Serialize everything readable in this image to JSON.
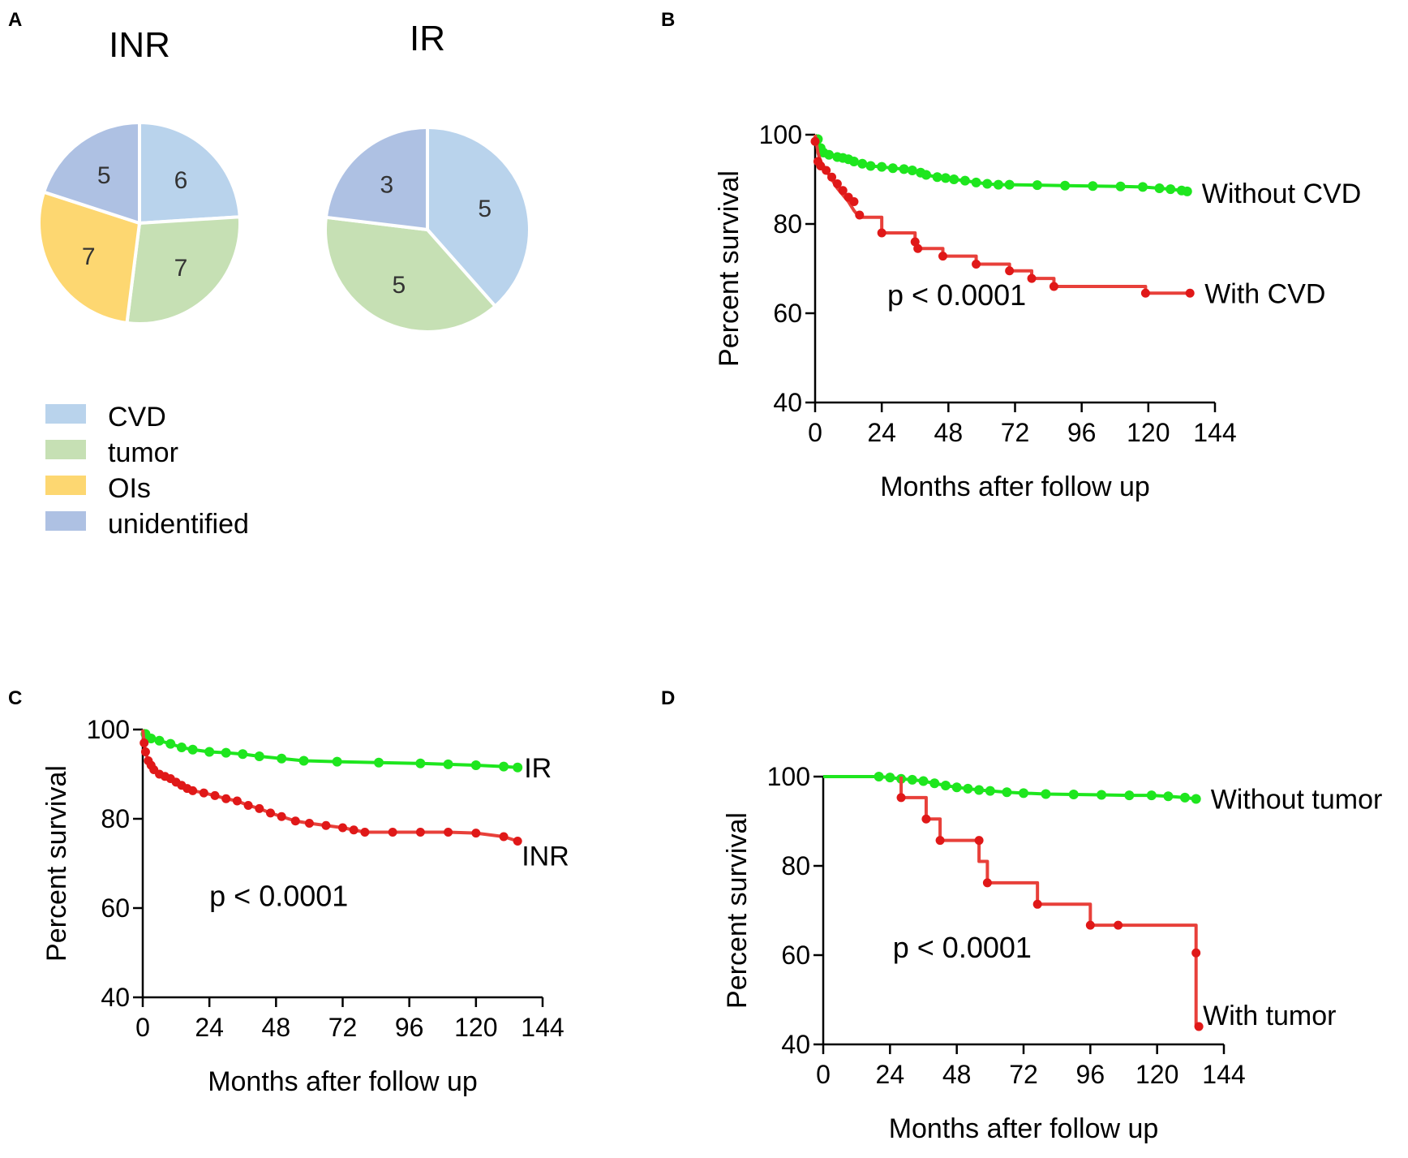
{
  "panels": {
    "a": "A",
    "b": "B",
    "c": "C",
    "d": "D"
  },
  "colors": {
    "CVD": "#b9d3ec",
    "tumor": "#c6e0b4",
    "OIs": "#fdd771",
    "unidentified": "#aec1e3",
    "green_curve": "#1ee61e",
    "red_curve": "#e8403a",
    "red_points": "#e01818"
  },
  "chart_data": [
    {
      "type": "pie",
      "panel": "A",
      "title": "INR",
      "slices": [
        {
          "category": "CVD",
          "value": 6
        },
        {
          "category": "tumor",
          "value": 7
        },
        {
          "category": "OIs",
          "value": 7
        },
        {
          "category": "unidentified",
          "value": 5
        }
      ]
    },
    {
      "type": "pie",
      "panel": "A",
      "title": "IR",
      "slices": [
        {
          "category": "CVD",
          "value": 5
        },
        {
          "category": "tumor",
          "value": 5
        },
        {
          "category": "unidentified",
          "value": 3
        }
      ]
    },
    {
      "type": "legend",
      "panel": "A",
      "entries": [
        {
          "category": "CVD",
          "label": "CVD"
        },
        {
          "category": "tumor",
          "label": "tumor"
        },
        {
          "category": "OIs",
          "label": "OIs"
        },
        {
          "category": "unidentified",
          "label": "unidentified"
        }
      ]
    },
    {
      "type": "line",
      "panel": "B",
      "xlabel": "Months after follow up",
      "ylabel": "Percent survival",
      "xlim": [
        0,
        144
      ],
      "ylim": [
        40,
        100
      ],
      "xticks": [
        "0",
        "24",
        "48",
        "72",
        "96",
        "120",
        "144"
      ],
      "yticks": [
        "40",
        "60",
        "80",
        "100"
      ],
      "annotation": {
        "text": "p < 0.0001",
        "x": 26,
        "y": 61.8
      },
      "series": [
        {
          "name": "Without CVD",
          "color_key": "green_curve",
          "points": [
            [
              0,
              100
            ],
            [
              1,
              99
            ],
            [
              2,
              97
            ],
            [
              3,
              96
            ],
            [
              5,
              95.5
            ],
            [
              8,
              95
            ],
            [
              10,
              94.8
            ],
            [
              12,
              94.5
            ],
            [
              14,
              94
            ],
            [
              17,
              93.5
            ],
            [
              20,
              93
            ],
            [
              24,
              92.8
            ],
            [
              28,
              92.5
            ],
            [
              32,
              92.3
            ],
            [
              35,
              92
            ],
            [
              38,
              91.5
            ],
            [
              40,
              91
            ],
            [
              44,
              90.5
            ],
            [
              47,
              90.3
            ],
            [
              50,
              90
            ],
            [
              54,
              89.7
            ],
            [
              58,
              89.3
            ],
            [
              62,
              89
            ],
            [
              66,
              88.8
            ],
            [
              70,
              88.8
            ],
            [
              80,
              88.7
            ],
            [
              90,
              88.6
            ],
            [
              100,
              88.5
            ],
            [
              110,
              88.4
            ],
            [
              118,
              88.3
            ],
            [
              124,
              88
            ],
            [
              128,
              87.8
            ],
            [
              132,
              87.5
            ],
            [
              134,
              87.3
            ]
          ],
          "label": "Without CVD"
        },
        {
          "name": "With CVD",
          "color_key": "red_curve",
          "points": [
            [
              0,
              100
            ],
            [
              0.5,
              98
            ],
            [
              1,
              96
            ],
            [
              2,
              94
            ],
            [
              4,
              92
            ],
            [
              6,
              90
            ],
            [
              8,
              88
            ],
            [
              10,
              86.5
            ],
            [
              12,
              85
            ],
            [
              14,
              83
            ],
            [
              16,
              81.5
            ],
            [
              24,
              81.5
            ],
            [
              24,
              78
            ],
            [
              36,
              78
            ],
            [
              36,
              75.5
            ],
            [
              38,
              74.5
            ],
            [
              46,
              74.5
            ],
            [
              46,
              72.8
            ],
            [
              58,
              72.8
            ],
            [
              58,
              71
            ],
            [
              70,
              71
            ],
            [
              70,
              69.5
            ],
            [
              78,
              69.5
            ],
            [
              78,
              67.8
            ],
            [
              86,
              67.8
            ],
            [
              86,
              66
            ],
            [
              119,
              66
            ],
            [
              119,
              64.5
            ],
            [
              135,
              64.5
            ]
          ],
          "markers": [
            [
              0,
              98.5
            ],
            [
              1,
              94
            ],
            [
              2,
              93
            ],
            [
              4,
              92
            ],
            [
              6,
              90.5
            ],
            [
              8,
              89
            ],
            [
              10,
              87.5
            ],
            [
              12,
              86
            ],
            [
              14,
              85
            ],
            [
              16,
              82
            ],
            [
              24,
              78
            ],
            [
              36,
              76
            ],
            [
              37,
              74.5
            ],
            [
              46,
              72.8
            ],
            [
              58,
              71
            ],
            [
              70,
              69.5
            ],
            [
              78,
              67.8
            ],
            [
              86,
              66
            ],
            [
              119,
              64.5
            ],
            [
              135,
              64.5
            ]
          ],
          "label": "With CVD"
        }
      ]
    },
    {
      "type": "line",
      "panel": "C",
      "xlabel": "Months after follow up",
      "ylabel": "Percent survival",
      "xlim": [
        0,
        144
      ],
      "ylim": [
        40,
        100
      ],
      "xticks": [
        "0",
        "24",
        "48",
        "72",
        "96",
        "120",
        "144"
      ],
      "yticks": [
        "40",
        "60",
        "80",
        "100"
      ],
      "annotation": {
        "text": "p < 0.0001",
        "x": 24,
        "y": 60.5
      },
      "series": [
        {
          "name": "IR",
          "color_key": "green_curve",
          "points": [
            [
              0,
              100
            ],
            [
              1,
              99
            ],
            [
              3,
              98
            ],
            [
              6,
              97.5
            ],
            [
              10,
              96.8
            ],
            [
              14,
              96
            ],
            [
              18,
              95.5
            ],
            [
              24,
              95
            ],
            [
              30,
              94.8
            ],
            [
              36,
              94.5
            ],
            [
              42,
              94
            ],
            [
              50,
              93.5
            ],
            [
              58,
              93
            ],
            [
              70,
              92.8
            ],
            [
              85,
              92.6
            ],
            [
              100,
              92.4
            ],
            [
              110,
              92.2
            ],
            [
              120,
              92
            ],
            [
              130,
              91.7
            ],
            [
              135,
              91.5
            ]
          ],
          "label": "IR"
        },
        {
          "name": "INR",
          "color_key": "red_curve",
          "points": [
            [
              0,
              100
            ],
            [
              0.5,
              97
            ],
            [
              1,
              95
            ],
            [
              2,
              93
            ],
            [
              3,
              92
            ],
            [
              4,
              91
            ],
            [
              6,
              90
            ],
            [
              8,
              89.5
            ],
            [
              10,
              89
            ],
            [
              12,
              88.2
            ],
            [
              14,
              87.5
            ],
            [
              16,
              86.8
            ],
            [
              18,
              86.3
            ],
            [
              22,
              85.8
            ],
            [
              26,
              85.2
            ],
            [
              30,
              84.5
            ],
            [
              34,
              84
            ],
            [
              38,
              83
            ],
            [
              42,
              82.3
            ],
            [
              46,
              81.3
            ],
            [
              50,
              80.5
            ],
            [
              55,
              79.5
            ],
            [
              60,
              79
            ],
            [
              66,
              78.5
            ],
            [
              72,
              78
            ],
            [
              76,
              77.5
            ],
            [
              80,
              77
            ],
            [
              90,
              77
            ],
            [
              100,
              77
            ],
            [
              110,
              77
            ],
            [
              120,
              76.8
            ],
            [
              130,
              76
            ],
            [
              135,
              75
            ]
          ],
          "label": "INR"
        }
      ]
    },
    {
      "type": "line",
      "panel": "D",
      "xlabel": "Months after follow up",
      "ylabel": "Percent survival",
      "xlim": [
        0,
        144
      ],
      "ylim": [
        40,
        100
      ],
      "xticks": [
        "0",
        "24",
        "48",
        "72",
        "96",
        "120",
        "144"
      ],
      "yticks": [
        "40",
        "60",
        "80",
        "100"
      ],
      "annotation": {
        "text": "p < 0.0001",
        "x": 25,
        "y": 59.5
      },
      "series": [
        {
          "name": "Without tumor",
          "color_key": "green_curve",
          "points": [
            [
              0,
              100
            ],
            [
              20,
              100
            ],
            [
              24,
              99.8
            ],
            [
              28,
              99.5
            ],
            [
              32,
              99.3
            ],
            [
              36,
              99
            ],
            [
              40,
              98.5
            ],
            [
              44,
              98
            ],
            [
              48,
              97.6
            ],
            [
              52,
              97.3
            ],
            [
              56,
              97
            ],
            [
              60,
              96.8
            ],
            [
              66,
              96.5
            ],
            [
              72,
              96.3
            ],
            [
              80,
              96.1
            ],
            [
              90,
              96
            ],
            [
              100,
              95.9
            ],
            [
              110,
              95.8
            ],
            [
              118,
              95.8
            ],
            [
              124,
              95.6
            ],
            [
              130,
              95.3
            ],
            [
              134,
              95
            ]
          ],
          "label": "Without  tumor"
        },
        {
          "name": "With tumor",
          "color_key": "red_curve",
          "points": [
            [
              28,
              100
            ],
            [
              28,
              95.3
            ],
            [
              37,
              95.3
            ],
            [
              37,
              90.5
            ],
            [
              42,
              90.5
            ],
            [
              42,
              85.7
            ],
            [
              56,
              85.7
            ],
            [
              56,
              81
            ],
            [
              59,
              81
            ],
            [
              59,
              76.2
            ],
            [
              77,
              76.2
            ],
            [
              77,
              71.4
            ],
            [
              96,
              71.4
            ],
            [
              96,
              66.7
            ],
            [
              134,
              66.7
            ],
            [
              134,
              60.5
            ],
            [
              134,
              44
            ],
            [
              135,
              44
            ]
          ],
          "markers": [
            [
              28,
              95.3
            ],
            [
              37,
              90.5
            ],
            [
              42,
              85.7
            ],
            [
              56,
              85.7
            ],
            [
              59,
              76.2
            ],
            [
              77,
              71.4
            ],
            [
              96,
              66.7
            ],
            [
              106,
              66.7
            ],
            [
              134,
              60.5
            ],
            [
              135,
              44
            ]
          ],
          "label": "With  tumor"
        }
      ]
    }
  ]
}
